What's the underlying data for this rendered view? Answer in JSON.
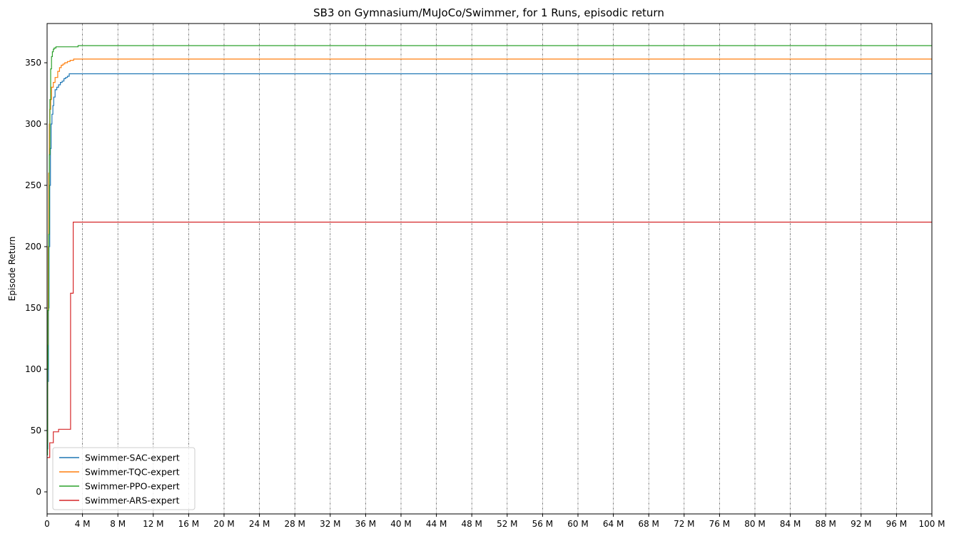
{
  "chart_data": {
    "type": "line",
    "title": "SB3 on Gymnasium/MuJoCo/Swimmer, for 1 Runs, episodic return",
    "xlabel": "",
    "ylabel": "Episode Return",
    "xlim": [
      0,
      100
    ],
    "ylim": [
      -18,
      382
    ],
    "x_unit": "M",
    "x_ticks": [
      0,
      4,
      8,
      12,
      16,
      20,
      24,
      28,
      32,
      36,
      40,
      44,
      48,
      52,
      56,
      60,
      64,
      68,
      72,
      76,
      80,
      84,
      88,
      92,
      96,
      100
    ],
    "x_tick_labels": [
      "0",
      "4 M",
      "8 M",
      "12 M",
      "16 M",
      "20 M",
      "24 M",
      "28 M",
      "32 M",
      "36 M",
      "40 M",
      "44 M",
      "48 M",
      "52 M",
      "56 M",
      "60 M",
      "64 M",
      "68 M",
      "72 M",
      "76 M",
      "80 M",
      "84 M",
      "88 M",
      "92 M",
      "96 M",
      "100 M"
    ],
    "y_ticks": [
      0,
      50,
      100,
      150,
      200,
      250,
      300,
      350
    ],
    "y_tick_labels": [
      "0",
      "50",
      "100",
      "150",
      "200",
      "250",
      "300",
      "350"
    ],
    "grid": "x-dashed",
    "legend_position": "lower-left",
    "series": [
      {
        "name": "Swimmer-SAC-expert",
        "color": "#1f77b4",
        "x": [
          0,
          0.08,
          0.15,
          0.22,
          0.3,
          0.38,
          0.45,
          0.55,
          0.65,
          0.75,
          0.9,
          1.1,
          1.3,
          1.5,
          1.7,
          1.9,
          2.1,
          2.3,
          2.5,
          100
        ],
        "y": [
          35,
          90,
          150,
          200,
          250,
          280,
          300,
          308,
          315,
          322,
          328,
          330,
          332,
          334,
          335,
          337,
          338,
          339,
          341,
          341
        ]
      },
      {
        "name": "Swimmer-TQC-expert",
        "color": "#ff7f0e",
        "x": [
          0,
          0.06,
          0.12,
          0.18,
          0.25,
          0.3,
          0.4,
          0.5,
          0.7,
          0.9,
          1.2,
          1.4,
          1.6,
          1.8,
          2.0,
          2.3,
          2.6,
          3.0,
          100
        ],
        "y": [
          40,
          120,
          200,
          260,
          300,
          312,
          320,
          330,
          334,
          338,
          343,
          346,
          348,
          349,
          350,
          351,
          352,
          353,
          353
        ]
      },
      {
        "name": "Swimmer-PPO-expert",
        "color": "#2ca02c",
        "x": [
          0,
          0.05,
          0.1,
          0.18,
          0.25,
          0.32,
          0.4,
          0.5,
          0.6,
          0.7,
          0.8,
          1.0,
          2.0,
          3.0,
          3.5,
          100
        ],
        "y": [
          30,
          100,
          148,
          210,
          275,
          320,
          345,
          355,
          359,
          361,
          362,
          363,
          363,
          363,
          364,
          364
        ]
      },
      {
        "name": "Swimmer-ARS-expert",
        "color": "#d62728",
        "x": [
          0,
          0.15,
          0.3,
          0.5,
          0.7,
          1.0,
          1.3,
          2.0,
          2.6,
          2.65,
          2.9,
          2.95,
          100
        ],
        "y": [
          28,
          28,
          40,
          40,
          49,
          49,
          51,
          51,
          51,
          162,
          162,
          220,
          220
        ]
      }
    ]
  }
}
